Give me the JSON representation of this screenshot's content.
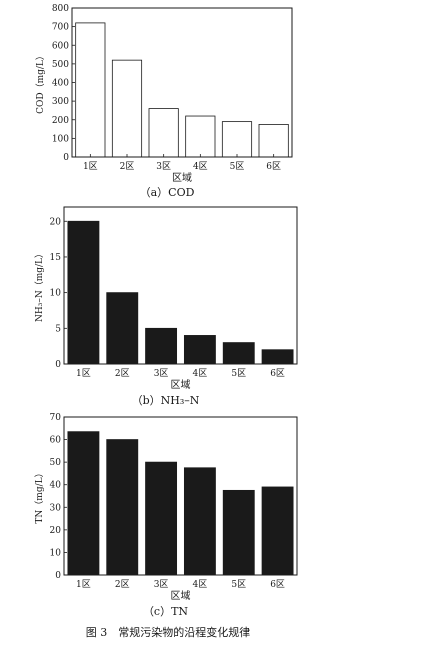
{
  "figure_caption": "图 3　常规污染物的沿程变化规律",
  "chart_data": [
    {
      "type": "bar",
      "caption": "（a）COD",
      "ylabel": "COD（mg/L）",
      "xlabel": "区域",
      "categories": [
        "1区",
        "2区",
        "3区",
        "4区",
        "5区",
        "6区"
      ],
      "values": [
        720,
        520,
        260,
        220,
        190,
        175
      ],
      "ylim": [
        0,
        800
      ],
      "yticks": [
        0,
        100,
        200,
        300,
        400,
        500,
        600,
        700,
        800
      ],
      "bar_fill": "#ffffff",
      "bar_stroke": "#1a1a1a",
      "grid": false
    },
    {
      "type": "bar",
      "caption": "（b）NH₃–N",
      "ylabel": "NH₃–N（mg/L）",
      "xlabel": "区域",
      "categories": [
        "1区",
        "2区",
        "3区",
        "4区",
        "5区",
        "6区"
      ],
      "values": [
        20,
        10,
        5,
        4,
        3,
        2
      ],
      "ylim": [
        0,
        22
      ],
      "yticks": [
        0,
        5,
        10,
        15,
        20
      ],
      "bar_fill": "#1a1a1a",
      "bar_stroke": "#1a1a1a",
      "grid": false
    },
    {
      "type": "bar",
      "caption": "（c）TN",
      "ylabel": "TN（mg/L）",
      "xlabel": "区域",
      "categories": [
        "1区",
        "2区",
        "3区",
        "4区",
        "5区",
        "6区"
      ],
      "values": [
        63.5,
        60,
        50,
        47.5,
        37.5,
        39
      ],
      "ylim": [
        0,
        70
      ],
      "yticks": [
        0,
        10,
        20,
        30,
        40,
        50,
        60,
        70
      ],
      "bar_fill": "#1a1a1a",
      "bar_stroke": "#1a1a1a",
      "grid": false
    }
  ]
}
